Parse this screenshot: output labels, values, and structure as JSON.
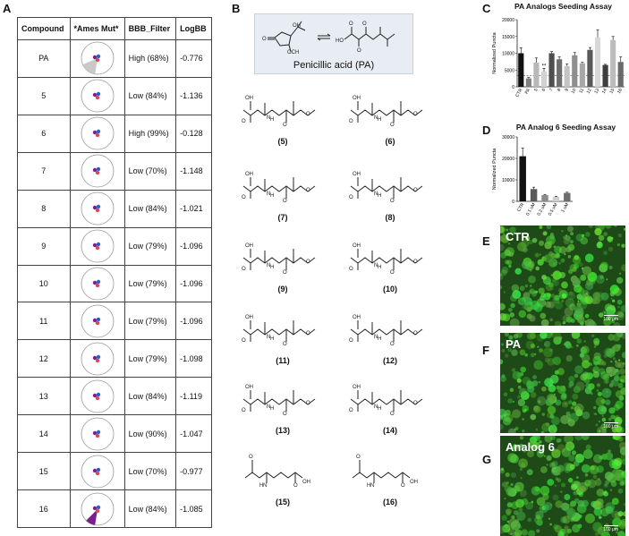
{
  "panels": {
    "a": "A",
    "b": "B",
    "c": "C",
    "d": "D",
    "e": "E",
    "f": "F",
    "g": "G"
  },
  "table": {
    "headers": [
      "Compound",
      "*Ames Mut*",
      "BBB_Filter",
      "LogBB"
    ],
    "rows": [
      {
        "compound": "PA",
        "ames": 0.16,
        "bbb": "High (68%)",
        "logbb": "-0.776"
      },
      {
        "compound": "5",
        "ames": 0.01,
        "bbb": "Low (84%)",
        "logbb": "-1.136"
      },
      {
        "compound": "6",
        "ames": 0.01,
        "bbb": "High (99%)",
        "logbb": "-0.128"
      },
      {
        "compound": "7",
        "ames": 0.01,
        "bbb": "Low (70%)",
        "logbb": "-1.148"
      },
      {
        "compound": "8",
        "ames": 0.01,
        "bbb": "Low (84%)",
        "logbb": "-1.021"
      },
      {
        "compound": "9",
        "ames": 0.01,
        "bbb": "Low (79%)",
        "logbb": "-1.096"
      },
      {
        "compound": "10",
        "ames": 0.01,
        "bbb": "Low (79%)",
        "logbb": "-1.096"
      },
      {
        "compound": "11",
        "ames": 0.01,
        "bbb": "Low (79%)",
        "logbb": "-1.096"
      },
      {
        "compound": "12",
        "ames": 0.01,
        "bbb": "Low (79%)",
        "logbb": "-1.098"
      },
      {
        "compound": "13",
        "ames": 0.01,
        "bbb": "Low (84%)",
        "logbb": "-1.119"
      },
      {
        "compound": "14",
        "ames": 0.01,
        "bbb": "Low (90%)",
        "logbb": "-1.047"
      },
      {
        "compound": "15",
        "ames": 0.01,
        "bbb": "Low (70%)",
        "logbb": "-0.977"
      },
      {
        "compound": "16",
        "ames": 0.1,
        "bbb": "Low (84%)",
        "logbb": "-1.085"
      }
    ]
  },
  "structures": {
    "pa_name": "Penicillic acid (PA)",
    "labels": [
      "(5)",
      "(6)",
      "(7)",
      "(8)",
      "(9)",
      "(10)",
      "(11)",
      "(12)",
      "(13)",
      "(14)",
      "(15)",
      "(16)"
    ]
  },
  "chart_data": [
    {
      "type": "bar",
      "title": "PA Analogs Seeding Assay",
      "ylabel": "Normalized Puncta",
      "categories": [
        "CTR",
        "PA",
        "5",
        "6",
        "7",
        "8",
        "9",
        "10",
        "11",
        "12",
        "13",
        "14",
        "15",
        "16"
      ],
      "values": [
        10000,
        2500,
        7200,
        4600,
        10000,
        8200,
        6200,
        9400,
        7000,
        11000,
        14700,
        6500,
        13900,
        7400
      ],
      "errors": [
        1600,
        300,
        1400,
        900,
        500,
        700,
        600,
        800,
        300,
        700,
        2300,
        200,
        1100,
        1500
      ],
      "stars": [
        "",
        "",
        "",
        "**",
        "",
        "",
        "",
        "",
        "",
        "",
        "",
        "",
        "",
        ""
      ],
      "colors": [
        "#111111",
        "#7f7f7f",
        "#b8b8b8",
        "#d2d2d2",
        "#4f4f4f",
        "#6e6e6e",
        "#c4c4c4",
        "#8e8e8e",
        "#a8a8a8",
        "#5a5a5a",
        "#d8d8d8",
        "#3e3e3e",
        "#bcbcbc",
        "#6a6a6a"
      ],
      "yticks": [
        "0",
        "5000",
        "10000",
        "15000",
        "20000"
      ],
      "ylim": [
        0,
        20000
      ],
      "reference_line": 3300
    },
    {
      "type": "bar",
      "title": "PA Analog 6 Seeding Assay",
      "ylabel": "Normalized Puncta",
      "categories": [
        "CTR",
        "0.1 uM",
        "0.2 uM",
        "0.5 uM",
        "1 uM"
      ],
      "values": [
        21000,
        5700,
        2900,
        2100,
        3900
      ],
      "errors": [
        3800,
        900,
        300,
        250,
        350
      ],
      "colors": [
        "#111111",
        "#5a5a5a",
        "#8a8a8a",
        "#cfcfcf",
        "#6d6d6d"
      ],
      "yticks": [
        "0",
        "10000",
        "20000",
        "30000"
      ],
      "ylim": [
        0,
        30000
      ]
    }
  ],
  "micrographs": [
    {
      "label": "CTR",
      "scale": "100 μm"
    },
    {
      "label": "PA",
      "scale": "100 μm"
    },
    {
      "label": "Analog 6",
      "scale": "100 μm"
    }
  ]
}
